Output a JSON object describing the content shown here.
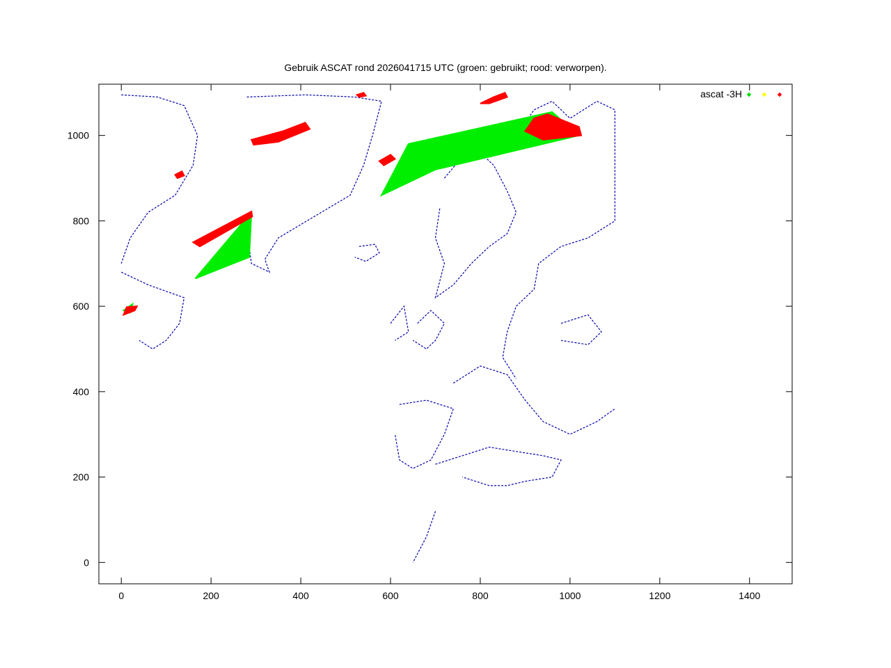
{
  "chart_data": {
    "type": "scatter",
    "title": "Gebruik ASCAT rond 2026041715 UTC (groen: gebruikt; rood: verworpen).",
    "xlabel": "",
    "ylabel": "",
    "xlim": [
      -50,
      1495
    ],
    "ylim": [
      -50,
      1120
    ],
    "x_ticks": [
      0,
      200,
      400,
      600,
      800,
      1000,
      1200,
      1400
    ],
    "y_ticks": [
      0,
      200,
      400,
      600,
      800,
      1000
    ],
    "grid": false,
    "legend": {
      "placement": "top-right",
      "label": "ascat -3H",
      "colors": [
        "#00dd00",
        "#ffff00",
        "#ff0000"
      ]
    },
    "colors": {
      "used": "#00ee00",
      "rejected": "#ff0000",
      "coastline": "#0000aa"
    },
    "series": [
      {
        "status": "used",
        "color": "#00ee00",
        "swaths": [
          {
            "polygon": [
              [
                165,
                665
              ],
              [
                290,
                820
              ],
              [
                285,
                715
              ]
            ]
          },
          {
            "polygon": [
              [
                580,
                860
              ],
              [
                640,
                980
              ],
              [
                960,
                1055
              ],
              [
                1020,
                1000
              ],
              [
                700,
                920
              ]
            ]
          },
          {
            "polygon": [
              [
                5,
                590
              ],
              [
                25,
                605
              ],
              [
                20,
                585
              ]
            ]
          }
        ]
      },
      {
        "status": "rejected",
        "color": "#ff0000",
        "swaths": [
          {
            "polygon": [
              [
                290,
                990
              ],
              [
                360,
                1010
              ],
              [
                410,
                1030
              ],
              [
                420,
                1015
              ],
              [
                350,
                985
              ],
              [
                295,
                978
              ]
            ]
          },
          {
            "polygon": [
              [
                160,
                750
              ],
              [
                290,
                822
              ],
              [
                292,
                810
              ],
              [
                175,
                740
              ]
            ]
          },
          {
            "polygon": [
              [
                575,
                940
              ],
              [
                600,
                955
              ],
              [
                610,
                945
              ],
              [
                585,
                930
              ]
            ]
          },
          {
            "polygon": [
              [
                920,
                1040
              ],
              [
                950,
                1050
              ],
              [
                1020,
                1020
              ],
              [
                1025,
                1000
              ],
              [
                940,
                990
              ],
              [
                900,
                1010
              ]
            ]
          },
          {
            "polygon": [
              [
                800,
                1075
              ],
              [
                830,
                1090
              ],
              [
                855,
                1100
              ],
              [
                860,
                1090
              ],
              [
                820,
                1075
              ]
            ]
          },
          {
            "polygon": [
              [
                525,
                1095
              ],
              [
                540,
                1100
              ],
              [
                545,
                1093
              ],
              [
                530,
                1090
              ]
            ]
          },
          {
            "polygon": [
              [
                120,
                908
              ],
              [
                135,
                916
              ],
              [
                140,
                906
              ],
              [
                125,
                900
              ]
            ]
          },
          {
            "polygon": [
              [
                5,
                580
              ],
              [
                30,
                590
              ],
              [
                35,
                600
              ],
              [
                12,
                598
              ]
            ]
          }
        ]
      }
    ]
  }
}
